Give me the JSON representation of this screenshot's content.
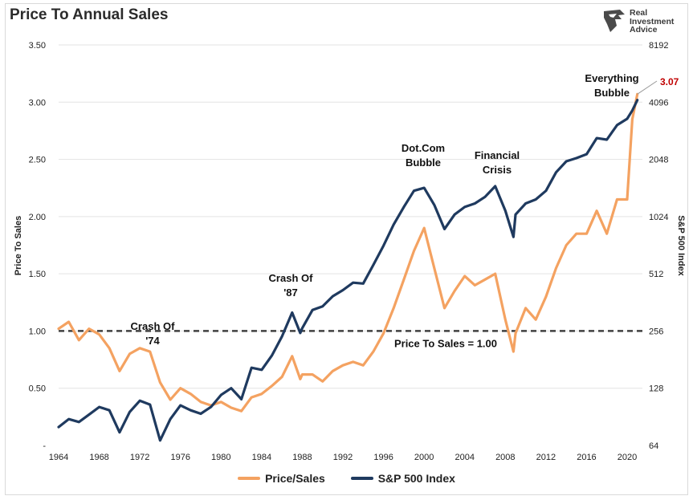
{
  "header": {
    "title": "Price To Annual Sales"
  },
  "brand": {
    "line1": "Real",
    "line2": "Investment",
    "line3": "Advice"
  },
  "colors": {
    "price_sales": "#F4A261",
    "sp500": "#1F3A5F",
    "reference": "#404040",
    "end_value": "#C00000"
  },
  "legend": {
    "price_sales": "Price/Sales",
    "sp500": "S&P 500 Index"
  },
  "chart_data": {
    "type": "line",
    "title": "Price To Annual Sales",
    "ylabel": "Price To Sales",
    "y2label": "S&P 500 Index",
    "xlabel": "",
    "x_ticks": [
      "1964",
      "1968",
      "1972",
      "1976",
      "1980",
      "1984",
      "1988",
      "1992",
      "1996",
      "2000",
      "2004",
      "2008",
      "2012",
      "2016",
      "2020"
    ],
    "ylim": [
      0,
      3.5
    ],
    "y_ticks": [
      "-",
      "0.50",
      "1.00",
      "1.50",
      "2.00",
      "2.50",
      "3.00",
      "3.50"
    ],
    "y2lim": [
      64,
      8192
    ],
    "y2_scale": "log2",
    "y2_ticks": [
      "64",
      "128",
      "256",
      "512",
      "1024",
      "2048",
      "4096",
      "8192"
    ],
    "grid": true,
    "legend_position": "bottom",
    "reference_line": {
      "y": 1.0,
      "label": "Price To Sales = 1.00",
      "style": "dashed"
    },
    "end_value_label": "3.07",
    "annotations": [
      {
        "lines": [
          "Crash Of",
          "'74"
        ],
        "x": 1974
      },
      {
        "lines": [
          "Crash Of",
          "'87"
        ],
        "x": 1987
      },
      {
        "lines": [
          "Dot.Com",
          "Bubble"
        ],
        "x": 2000
      },
      {
        "lines": [
          "Financial",
          "Crisis"
        ],
        "x": 2007
      },
      {
        "lines": [
          "Everything",
          "Bubble"
        ],
        "x": 2019.5
      }
    ],
    "series": [
      {
        "name": "Price/Sales",
        "axis": "left",
        "x": [
          1964,
          1965,
          1966,
          1967,
          1968,
          1969,
          1970,
          1971,
          1972,
          1973,
          1974,
          1975,
          1976,
          1977,
          1978,
          1979,
          1980,
          1981,
          1982,
          1983,
          1984,
          1985,
          1986,
          1987,
          1987.8,
          1988,
          1989,
          1990,
          1991,
          1992,
          1993,
          1994,
          1995,
          1996,
          1997,
          1998,
          1999,
          2000,
          2001,
          2002,
          2003,
          2004,
          2005,
          2006,
          2007,
          2008,
          2008.8,
          2009,
          2010,
          2011,
          2012,
          2013,
          2014,
          2015,
          2016,
          2017,
          2018,
          2019,
          2020,
          2020.5,
          2021
        ],
        "values": [
          1.02,
          1.08,
          0.92,
          1.02,
          0.97,
          0.85,
          0.65,
          0.8,
          0.85,
          0.82,
          0.55,
          0.4,
          0.5,
          0.45,
          0.38,
          0.35,
          0.38,
          0.33,
          0.3,
          0.42,
          0.45,
          0.52,
          0.6,
          0.78,
          0.58,
          0.62,
          0.62,
          0.56,
          0.65,
          0.7,
          0.73,
          0.7,
          0.82,
          0.98,
          1.2,
          1.45,
          1.7,
          1.9,
          1.55,
          1.2,
          1.35,
          1.48,
          1.4,
          1.45,
          1.5,
          1.1,
          0.82,
          0.98,
          1.2,
          1.1,
          1.3,
          1.55,
          1.75,
          1.85,
          1.85,
          2.05,
          1.85,
          2.15,
          2.15,
          2.85,
          3.07
        ]
      },
      {
        "name": "S&P 500 Index",
        "axis": "right",
        "x": [
          1964,
          1965,
          1966,
          1967,
          1968,
          1969,
          1970,
          1971,
          1972,
          1973,
          1974,
          1975,
          1976,
          1977,
          1978,
          1979,
          1980,
          1981,
          1982,
          1983,
          1984,
          1985,
          1986,
          1987,
          1987.8,
          1988,
          1989,
          1990,
          1991,
          1992,
          1993,
          1994,
          1995,
          1996,
          1997,
          1998,
          1999,
          2000,
          2001,
          2002,
          2003,
          2004,
          2005,
          2006,
          2007,
          2008,
          2008.8,
          2009,
          2010,
          2011,
          2012,
          2013,
          2014,
          2015,
          2016,
          2017,
          2018,
          2019,
          2020,
          2020.5,
          2021
        ],
        "values": [
          80,
          88,
          85,
          93,
          102,
          98,
          75,
          96,
          110,
          105,
          68,
          88,
          104,
          98,
          94,
          102,
          118,
          128,
          112,
          164,
          160,
          190,
          240,
          320,
          250,
          265,
          330,
          345,
          390,
          420,
          460,
          455,
          570,
          720,
          930,
          1150,
          1400,
          1450,
          1180,
          880,
          1050,
          1150,
          1200,
          1300,
          1480,
          1100,
          800,
          1050,
          1200,
          1260,
          1400,
          1750,
          2000,
          2080,
          2180,
          2650,
          2600,
          3100,
          3350,
          3700,
          4200
        ]
      }
    ]
  }
}
